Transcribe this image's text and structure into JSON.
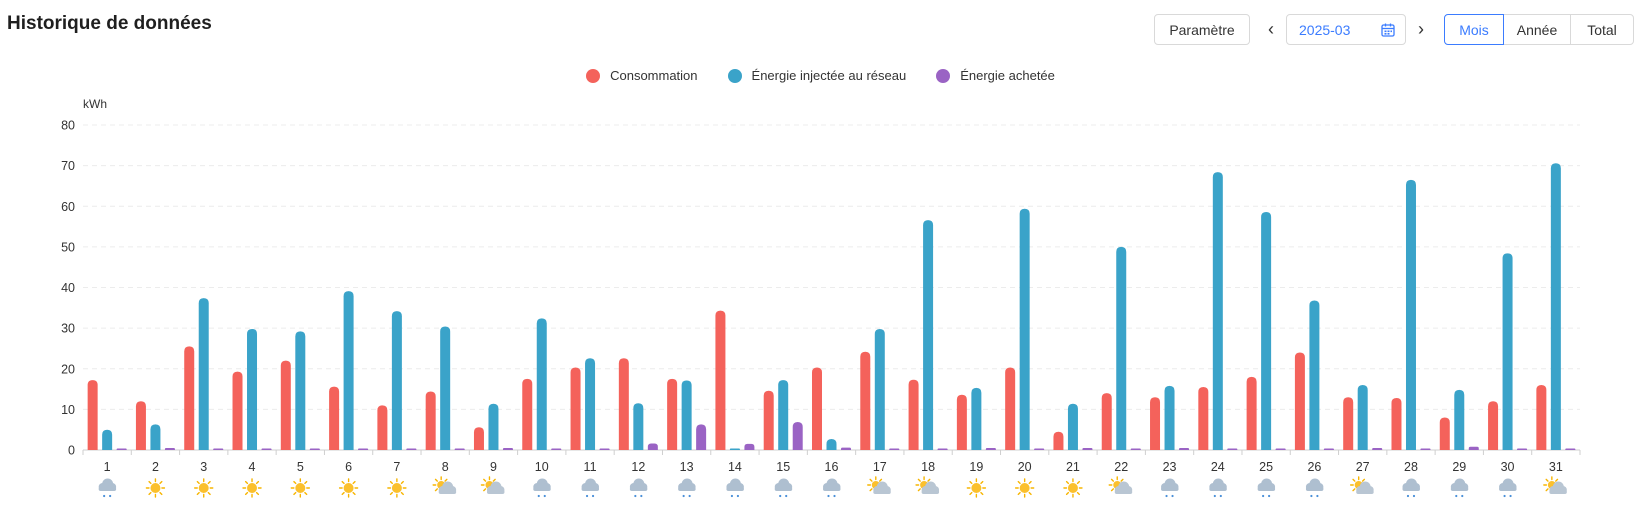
{
  "header": {
    "title": "Historique de données",
    "param_label": "Paramètre",
    "date_value": "2025-03",
    "modes": [
      "Mois",
      "Année",
      "Total"
    ],
    "active_mode": "Mois"
  },
  "colors": {
    "consumption": "#f4625b",
    "injected": "#3aa3c9",
    "purchased": "#9a63c4",
    "active": "#3b7cff"
  },
  "chart_data": {
    "type": "bar",
    "ylabel": "kWh",
    "ylim": [
      0,
      80
    ],
    "yticks": [
      0,
      10,
      20,
      30,
      40,
      50,
      60,
      70,
      80
    ],
    "grid": true,
    "legend_position": "top-center",
    "categories": [
      "1",
      "2",
      "3",
      "4",
      "5",
      "6",
      "7",
      "8",
      "9",
      "10",
      "11",
      "12",
      "13",
      "14",
      "15",
      "16",
      "17",
      "18",
      "19",
      "20",
      "21",
      "22",
      "23",
      "24",
      "25",
      "26",
      "27",
      "28",
      "29",
      "30",
      "31"
    ],
    "series": [
      {
        "name": "Consommation",
        "color": "#f4625b",
        "values": [
          17.2,
          12,
          25.5,
          19.3,
          22,
          15.6,
          11,
          14.4,
          5.6,
          17.5,
          20.3,
          22.6,
          17.5,
          34.3,
          14.6,
          20.3,
          24.2,
          17.3,
          13.6,
          20.3,
          4.5,
          14,
          13,
          15.5,
          18,
          24,
          13,
          12.8,
          8,
          12,
          16
        ]
      },
      {
        "name": "Énergie injectée au réseau",
        "color": "#3aa3c9",
        "values": [
          5,
          6.3,
          37.4,
          29.8,
          29.2,
          39.1,
          34.2,
          30.4,
          11.4,
          32.4,
          22.6,
          11.5,
          17.1,
          0.2,
          17.2,
          2.7,
          29.8,
          56.6,
          15.3,
          59.4,
          11.4,
          50,
          15.8,
          68.4,
          58.6,
          36.8,
          16,
          66.5,
          14.8,
          48.4,
          70.6
        ]
      },
      {
        "name": "Énergie achetée",
        "color": "#9a63c4",
        "values": [
          0.3,
          0.5,
          0.2,
          0.1,
          0.1,
          0.1,
          0.2,
          0.3,
          0.5,
          0.1,
          0.3,
          1.6,
          6.3,
          1.5,
          6.9,
          0.6,
          0.3,
          0.1,
          0.5,
          0.1,
          0.5,
          0.1,
          0.5,
          0.1,
          0.3,
          0.1,
          0.5,
          0.1,
          0.8,
          0.3,
          0.2
        ]
      }
    ],
    "weather": [
      "rain",
      "sun",
      "sun",
      "sun",
      "sun",
      "sun",
      "sun",
      "partly",
      "partly",
      "rain",
      "rain",
      "rain",
      "rain",
      "rain",
      "rain",
      "rain",
      "partly",
      "partly",
      "sun",
      "sun",
      "sun",
      "partly",
      "rain",
      "rain",
      "rain",
      "rain",
      "partly",
      "rain",
      "rain",
      "rain",
      "partly"
    ]
  }
}
